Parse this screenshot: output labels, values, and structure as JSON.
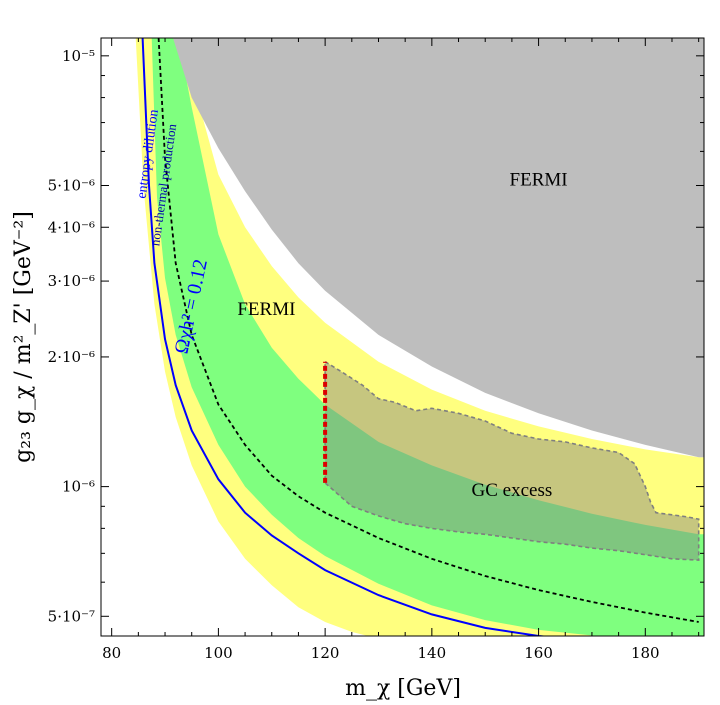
{
  "chart_data": {
    "type": "area",
    "title": "",
    "xlabel": "m_χ [GeV]",
    "ylabel": "g₂₃ g_χ / m²_Z' [GeV⁻²]",
    "xlim": [
      78,
      191
    ],
    "ylim": [
      4.5e-07,
      1.1e-05
    ],
    "yscale": "log",
    "x_ticks": [
      80,
      100,
      120,
      140,
      160,
      180
    ],
    "x_tick_labels": [
      "80",
      "100",
      "120",
      "140",
      "160",
      "180"
    ],
    "y_ticks": [
      5e-07,
      1e-06,
      2e-06,
      3e-06,
      4e-06,
      5e-06,
      1e-05
    ],
    "y_tick_labels": [
      "5·10⁻⁷",
      "10⁻⁶",
      "2·10⁻⁶",
      "3·10⁻⁶",
      "4·10⁻⁶",
      "5·10⁻⁶",
      "10⁻⁵"
    ],
    "colors": {
      "fermi_excluded": "#bebebe",
      "yellow_band": "#ffff7f",
      "green_band": "#7fff7f",
      "relic_line": "#0000ff",
      "nonthermal_line": "#000000",
      "gc_region_fill": "#808080",
      "gc_region_edge": "#7f7f7f",
      "gc_threshold": "#dd0000"
    },
    "series": [
      {
        "name": "FERMI excluded (gray)",
        "kind": "region",
        "x": [
          91.5,
          95,
          100,
          105,
          110,
          115,
          120,
          130,
          140,
          150,
          160,
          170,
          180,
          190
        ],
        "y": [
          1.1e-05,
          8e-06,
          6.1e-06,
          4.85e-06,
          3.95e-06,
          3.3e-06,
          2.85e-06,
          2.25e-06,
          1.9e-06,
          1.65e-06,
          1.48e-06,
          1.35e-06,
          1.25e-06,
          1.17e-06
        ]
      },
      {
        "name": "FERMI yellow band outer edge",
        "kind": "band_edge",
        "x": [
          84.5,
          86,
          88,
          90,
          92,
          95,
          100,
          105,
          110,
          115,
          120,
          125,
          128
        ],
        "y": [
          1.1e-05,
          4.9e-06,
          2.65e-06,
          1.85e-06,
          1.45e-06,
          1.12e-06,
          8.3e-07,
          6.8e-07,
          5.9e-07,
          5.25e-07,
          4.85e-07,
          4.6e-07,
          4.5e-07
        ]
      },
      {
        "name": "green band outer edge",
        "kind": "band_edge",
        "x": [
          87.5,
          88.5,
          90,
          92,
          95,
          100,
          105,
          110,
          115,
          120,
          130,
          140,
          150,
          160,
          171
        ],
        "y": [
          1.1e-05,
          4.7e-06,
          3.05e-06,
          2.25e-06,
          1.7e-06,
          1.25e-06,
          1e-06,
          8.6e-07,
          7.6e-07,
          6.9e-07,
          5.95e-07,
          5.3e-07,
          4.9e-07,
          4.65e-07,
          4.5e-07
        ]
      },
      {
        "name": "green band inner edge",
        "kind": "band_edge",
        "x": [
          92.5,
          95,
          100,
          105,
          110,
          115,
          120,
          130,
          140,
          150,
          160,
          170,
          180,
          190
        ],
        "y": [
          1.1e-05,
          7.6e-06,
          3.85e-06,
          2.65e-06,
          2.1e-06,
          1.78e-06,
          1.55e-06,
          1.27e-06,
          1.12e-06,
          1.01e-06,
          9.3e-07,
          8.65e-07,
          8.15e-07,
          7.75e-07
        ]
      },
      {
        "name": "FERMI yellow band inner edge",
        "kind": "band_edge",
        "x": [
          94.5,
          96,
          100,
          105,
          110,
          115,
          120,
          130,
          140,
          150,
          160,
          170,
          180,
          190
        ],
        "y": [
          1.1e-05,
          8e-06,
          5.3e-06,
          4e-06,
          3.25e-06,
          2.75e-06,
          2.4e-06,
          1.95e-06,
          1.68e-06,
          1.5e-06,
          1.38e-06,
          1.29e-06,
          1.22e-06,
          1.17e-06
        ]
      },
      {
        "name": "Ωχh² = 0.12 (entropy dilution)",
        "kind": "line",
        "x": [
          85.8,
          87,
          88,
          90,
          92,
          95,
          100,
          105,
          110,
          115,
          120,
          130,
          140,
          150,
          160,
          168
        ],
        "y": [
          1.1e-05,
          5e-06,
          3.3e-06,
          2.2e-06,
          1.72e-06,
          1.35e-06,
          1.04e-06,
          8.7e-07,
          7.7e-07,
          7e-07,
          6.4e-07,
          5.6e-07,
          5.05e-07,
          4.7e-07,
          4.5e-07,
          4.4e-07
        ]
      },
      {
        "name": "non-thermal production",
        "kind": "dashed_line",
        "x": [
          88.8,
          90,
          92,
          95,
          100,
          105,
          110,
          115,
          120,
          130,
          140,
          150,
          160,
          170,
          180,
          190
        ],
        "y": [
          1.1e-05,
          5.8e-06,
          3.3e-06,
          2.25e-06,
          1.55e-06,
          1.25e-06,
          1.06e-06,
          9.5e-07,
          8.7e-07,
          7.6e-07,
          6.8e-07,
          6.2e-07,
          5.75e-07,
          5.4e-07,
          5.1e-07,
          4.85e-07
        ]
      },
      {
        "name": "GC excess",
        "kind": "region",
        "x": [
          120,
          123,
          127,
          130,
          133,
          137,
          140,
          145,
          150,
          155,
          160,
          165,
          170,
          175,
          178,
          180,
          181,
          182,
          185,
          188,
          190,
          190,
          185,
          180,
          175,
          170,
          165,
          160,
          155,
          150,
          145,
          140,
          135,
          130,
          125,
          120
        ],
        "y": [
          1.95e-06,
          1.85e-06,
          1.72e-06,
          1.6e-06,
          1.57e-06,
          1.5e-06,
          1.52e-06,
          1.48e-06,
          1.42e-06,
          1.33e-06,
          1.29e-06,
          1.27e-06,
          1.23e-06,
          1.2e-06,
          1.13e-06,
          1e-06,
          9.2e-07,
          8.7e-07,
          8.6e-07,
          8.5e-07,
          8.4e-07,
          6.75e-07,
          6.8e-07,
          6.95e-07,
          7.1e-07,
          7.2e-07,
          7.35e-07,
          7.45e-07,
          7.6e-07,
          7.75e-07,
          7.85e-07,
          8e-07,
          8.2e-07,
          8.55e-07,
          9e-07,
          1.02e-06
        ]
      },
      {
        "name": "GC threshold (red dashed)",
        "kind": "dashed_line",
        "x": [
          120,
          120
        ],
        "y": [
          1.02e-06,
          1.95e-06
        ]
      }
    ],
    "annotations": [
      {
        "text": "FERMI",
        "x": 160,
        "y": 5e-06
      },
      {
        "text": "FERMI",
        "x": 109,
        "y": 2.5e-06
      },
      {
        "text": "GC excess",
        "x": 155,
        "y": 9.5e-07
      },
      {
        "text": "entropy dilution",
        "x": 87.5,
        "y": 5.9e-06
      },
      {
        "text": "non-thermal production",
        "x": 90.5,
        "y": 5e-06
      },
      {
        "text": "Ωχh² = 0.12",
        "x": 96,
        "y": 2.6e-06
      }
    ]
  }
}
